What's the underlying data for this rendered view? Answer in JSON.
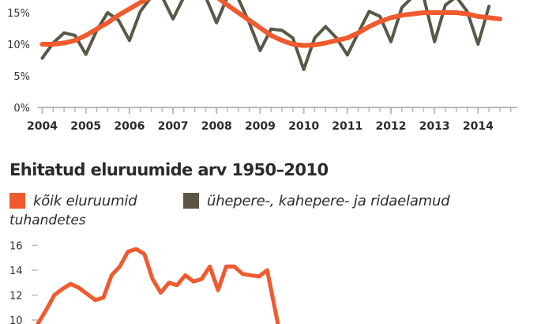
{
  "chart_data": [
    {
      "type": "line",
      "title": "",
      "xlabel": "",
      "ylabel": "",
      "x_tick_labels": [
        "2004",
        "2005",
        "2006",
        "2007",
        "2008",
        "2009",
        "2010",
        "2011",
        "2012",
        "2013",
        "2014"
      ],
      "y_tick_labels": [
        "0%",
        "5%",
        "10%",
        "15%"
      ],
      "yticks": [
        0,
        5,
        10,
        15
      ],
      "ylim": [
        0,
        17
      ],
      "xlim": [
        2003.9,
        2014.9
      ],
      "grid": false,
      "series": [
        {
          "name": "",
          "color": "#5a5747",
          "x": [
            2004.0,
            2004.25,
            2004.5,
            2004.75,
            2005.0,
            2005.25,
            2005.5,
            2005.75,
            2006.0,
            2006.25,
            2006.5,
            2006.75,
            2007.0,
            2007.25,
            2007.5,
            2007.75,
            2008.0,
            2008.25,
            2008.5,
            2008.75,
            2009.0,
            2009.25,
            2009.5,
            2009.75,
            2010.0,
            2010.25,
            2010.5,
            2010.75,
            2011.0,
            2011.25,
            2011.5,
            2011.75,
            2012.0,
            2012.25,
            2012.5,
            2012.75,
            2013.0,
            2013.25,
            2013.5,
            2013.75,
            2014.0,
            2014.25
          ],
          "y": [
            7.8,
            10.2,
            11.8,
            11.4,
            8.4,
            12.2,
            15.0,
            13.8,
            10.6,
            15.2,
            17.5,
            17.5,
            14.0,
            17.5,
            17.5,
            17.5,
            13.4,
            17.5,
            17.2,
            13.4,
            9.0,
            12.4,
            12.2,
            11.0,
            6.0,
            11.0,
            12.8,
            11.0,
            8.3,
            11.8,
            15.2,
            14.4,
            10.4,
            15.8,
            17.5,
            17.5,
            10.4,
            16.2,
            17.5,
            15.2,
            10.0,
            16.0
          ]
        },
        {
          "name": "",
          "color": "#f05a2e",
          "x": [
            2004.0,
            2004.25,
            2004.5,
            2004.75,
            2005.0,
            2005.25,
            2005.5,
            2005.75,
            2006.0,
            2006.25,
            2006.5,
            2006.75,
            2007.0,
            2007.25,
            2007.5,
            2007.75,
            2008.0,
            2008.25,
            2008.5,
            2008.75,
            2009.0,
            2009.25,
            2009.5,
            2009.75,
            2010.0,
            2010.25,
            2010.5,
            2010.75,
            2011.0,
            2011.25,
            2011.5,
            2011.75,
            2012.0,
            2012.25,
            2012.5,
            2012.75,
            2013.0,
            2013.25,
            2013.5,
            2013.75,
            2014.0,
            2014.25,
            2014.5
          ],
          "y": [
            10.0,
            10.0,
            10.2,
            10.6,
            11.4,
            12.4,
            13.4,
            14.6,
            15.6,
            16.6,
            17.5,
            17.5,
            17.5,
            17.5,
            17.5,
            17.5,
            17.5,
            16.2,
            15.0,
            13.8,
            12.6,
            11.4,
            10.6,
            10.0,
            9.8,
            9.9,
            10.2,
            10.6,
            11.0,
            11.8,
            12.8,
            13.6,
            14.2,
            14.6,
            14.8,
            15.0,
            15.0,
            15.0,
            15.0,
            14.8,
            14.4,
            14.2,
            14.0
          ]
        }
      ]
    },
    {
      "type": "line",
      "title": "Ehitatud eluruumide arv 1950–2010",
      "xlabel": "",
      "ylabel": "",
      "unit_label": "tuhandetes",
      "y_tick_labels": [
        "10",
        "12",
        "14",
        "16"
      ],
      "yticks": [
        10,
        12,
        14,
        16
      ],
      "ylim": [
        9.7,
        17
      ],
      "grid": false,
      "legend": {
        "placement": "top-left",
        "entries": [
          {
            "label": "kõik eluruumid",
            "color": "#f05a2e"
          },
          {
            "label": "ühepere-, kahepere- ja ridaelamud",
            "color": "#5a5747"
          }
        ]
      },
      "series": [
        {
          "name": "kõik eluruumid",
          "color": "#f05a2e",
          "x": [
            1950,
            1951,
            1952,
            1953,
            1954,
            1955,
            1956,
            1957,
            1958,
            1959,
            1960,
            1961,
            1962,
            1963,
            1964,
            1965,
            1966,
            1967,
            1968,
            1969,
            1970,
            1971,
            1972,
            1973,
            1974,
            1975,
            1976,
            1977,
            1978
          ],
          "y": [
            9.7,
            10.8,
            12.0,
            12.5,
            12.9,
            12.6,
            12.1,
            11.6,
            11.8,
            13.6,
            14.3,
            15.5,
            15.7,
            15.3,
            13.3,
            12.2,
            13.0,
            12.8,
            13.6,
            13.1,
            13.3,
            14.3,
            12.4,
            14.3,
            14.3,
            13.7,
            13.6,
            13.5,
            14.0
          ]
        }
      ],
      "line_continues_down_after": 1978
    }
  ]
}
